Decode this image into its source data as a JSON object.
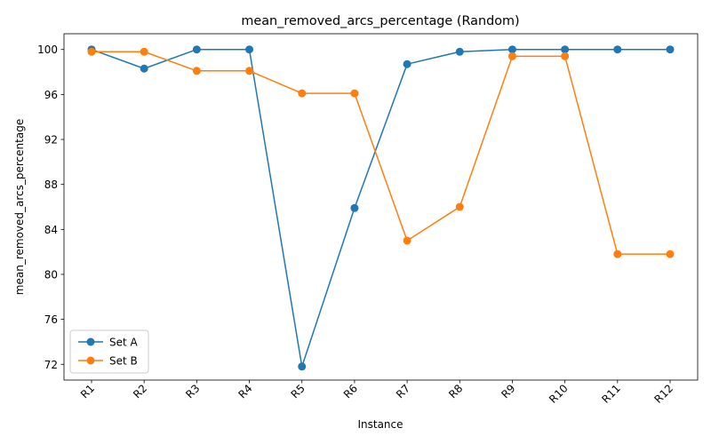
{
  "chart_data": {
    "type": "line",
    "title": "mean_removed_arcs_percentage (Random)",
    "xlabel": "Instance",
    "ylabel": "mean_removed_arcs_percentage",
    "categories": [
      "R1",
      "R2",
      "R3",
      "R4",
      "R5",
      "R6",
      "R7",
      "R8",
      "R9",
      "R10",
      "R11",
      "R12"
    ],
    "yticks": [
      72,
      76,
      80,
      84,
      88,
      92,
      96,
      100
    ],
    "ylim": [
      70.6,
      101.4
    ],
    "grid": false,
    "legend_position": "lower-left",
    "series": [
      {
        "name": "Set A",
        "color": "#1f77b4",
        "values": [
          100.0,
          98.3,
          100.0,
          100.0,
          71.8,
          85.9,
          98.7,
          99.8,
          100.0,
          100.0,
          100.0,
          100.0
        ]
      },
      {
        "name": "Set B",
        "color": "#ff7f0e",
        "values": [
          99.8,
          99.8,
          98.1,
          98.1,
          96.1,
          96.1,
          83.0,
          86.0,
          99.4,
          99.4,
          81.8,
          81.8
        ]
      }
    ]
  }
}
